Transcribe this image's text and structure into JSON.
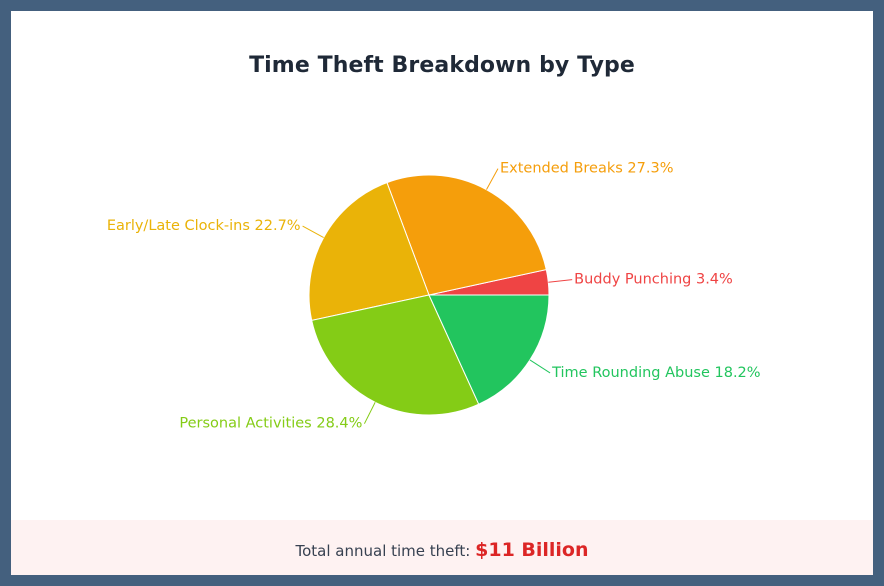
{
  "chart_data": {
    "type": "pie",
    "title": "Time Theft Breakdown by Type",
    "slices": [
      {
        "label": "Buddy Punching",
        "value": 3.4,
        "display": "Buddy Punching 3.4%",
        "color": "#ef4444"
      },
      {
        "label": "Extended Breaks",
        "value": 27.3,
        "display": "Extended Breaks 27.3%",
        "color": "#f59e0b"
      },
      {
        "label": "Early/Late Clock-ins",
        "value": 22.7,
        "display": "Early/Late Clock-ins 22.7%",
        "color": "#eab308"
      },
      {
        "label": "Personal Activities",
        "value": 28.4,
        "display": "Personal Activities 28.4%",
        "color": "#84cc16"
      },
      {
        "label": "Time Rounding Abuse",
        "value": 18.2,
        "display": "Time Rounding Abuse 18.2%",
        "color": "#22c55e"
      }
    ],
    "legend": "none"
  },
  "footer": {
    "label": "Total annual time theft: ",
    "value": "$11 Billion"
  }
}
